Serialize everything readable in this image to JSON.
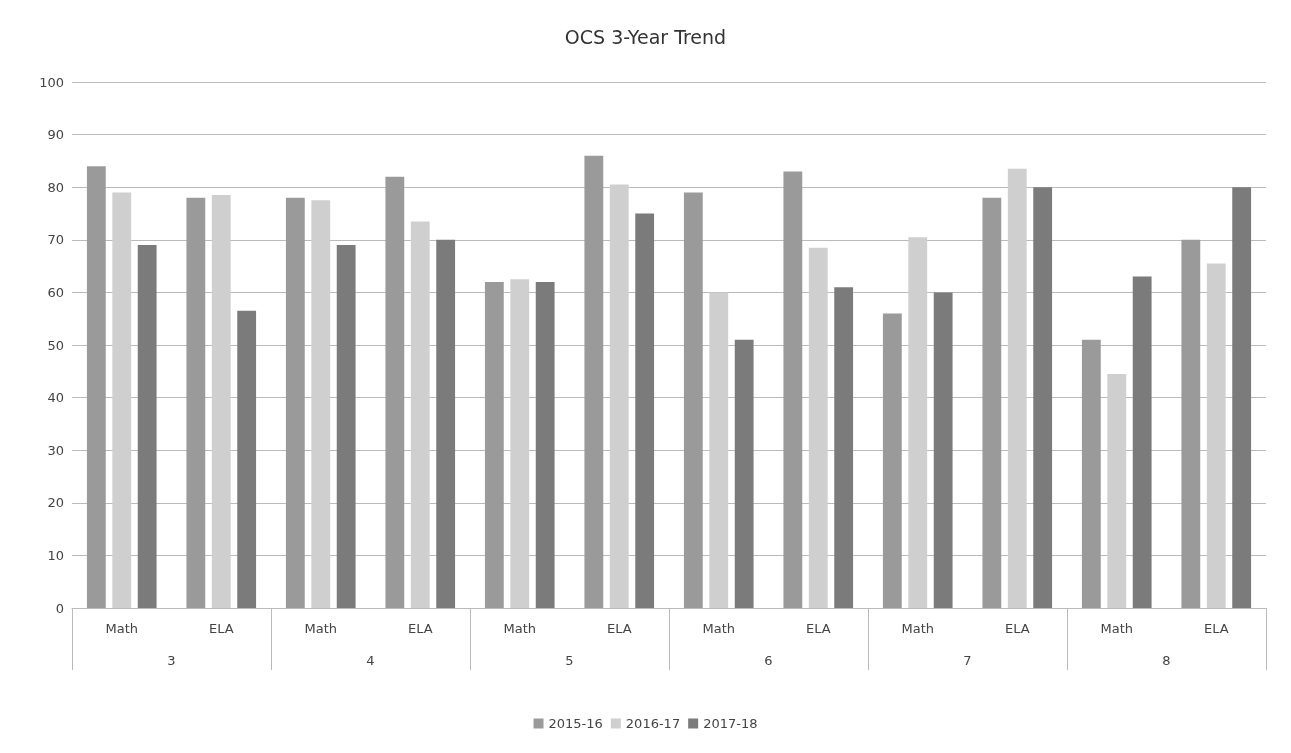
{
  "chart_data": {
    "type": "bar",
    "title": "OCS 3-Year Trend",
    "categories": [
      "Math",
      "ELA",
      "Math",
      "ELA",
      "Math",
      "ELA",
      "Math",
      "ELA",
      "Math",
      "ELA",
      "Math",
      "ELA"
    ],
    "annotations": [
      "3",
      "4",
      "5",
      "6",
      "7",
      "8"
    ],
    "series": [
      {
        "name": "2015-16",
        "color": "#9a9a9a",
        "values": [
          84,
          78,
          78,
          82,
          62,
          86,
          79,
          83,
          56,
          78,
          51,
          70
        ]
      },
      {
        "name": "2016-17",
        "color": "#cfcfcf",
        "values": [
          79,
          78.5,
          77.5,
          73.5,
          62.5,
          80.5,
          60,
          68.5,
          70.5,
          83.5,
          44.5,
          65.5
        ]
      },
      {
        "name": "2017-18",
        "color": "#7b7b7b",
        "values": [
          69,
          56.5,
          69,
          70,
          62,
          75,
          51,
          61,
          60,
          80,
          63,
          80
        ]
      }
    ],
    "ylim": [
      0,
      100
    ],
    "yticks": [
      0,
      10,
      20,
      30,
      40,
      50,
      60,
      70,
      80,
      90,
      100
    ],
    "grid": "y",
    "legend": "bottom"
  }
}
